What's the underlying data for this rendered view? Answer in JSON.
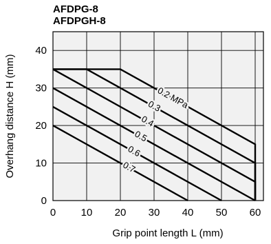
{
  "titles": [
    "AFDPG-8",
    "AFDPGH-8"
  ],
  "chart_data": {
    "type": "line",
    "xlabel": "Grip point length  L (mm)",
    "ylabel": "Overhang distance  H (mm)",
    "xlim": [
      0,
      60
    ],
    "ylim": [
      0,
      45
    ],
    "xticks": [
      0,
      10,
      20,
      30,
      40,
      50,
      60
    ],
    "yticks": [
      0,
      10,
      20,
      30,
      40
    ],
    "grid": true,
    "series": [
      {
        "name": "0.2 MPa",
        "points": [
          [
            0,
            35
          ],
          [
            20,
            35
          ],
          [
            60,
            15
          ],
          [
            60,
            0
          ]
        ]
      },
      {
        "name": "0.3",
        "points": [
          [
            0,
            35
          ],
          [
            10,
            35
          ],
          [
            60,
            10
          ],
          [
            60,
            0
          ]
        ]
      },
      {
        "name": "0.4",
        "points": [
          [
            0,
            35
          ],
          [
            60,
            5
          ],
          [
            60,
            0
          ]
        ]
      },
      {
        "name": "0.5",
        "points": [
          [
            0,
            30
          ],
          [
            60,
            0
          ]
        ]
      },
      {
        "name": "0.6",
        "points": [
          [
            0,
            25
          ],
          [
            50,
            0
          ]
        ]
      },
      {
        "name": "0.7",
        "points": [
          [
            0,
            20
          ],
          [
            40,
            0
          ]
        ]
      }
    ]
  }
}
